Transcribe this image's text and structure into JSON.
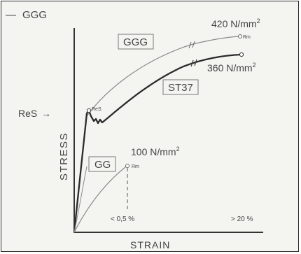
{
  "legend": {
    "dash": "—",
    "label": "GGG"
  },
  "axes": {
    "y_label": "STRESS",
    "x_label": "STRAIN"
  },
  "res_marker": {
    "label": "ReS",
    "arrow": "→",
    "point_label": "ReS"
  },
  "curves": {
    "ggg": {
      "box_label": "GGG",
      "strength": "420 N/mm",
      "sup": "2",
      "point_label": "Rm",
      "color": "#8a8a8a"
    },
    "st37": {
      "box_label": "ST37",
      "strength": "360 N/mm",
      "sup": "2",
      "color": "#2b2b2b"
    },
    "gg": {
      "box_label": "GG",
      "strength": "100 N/mm",
      "sup": "2",
      "point_label": "Rm",
      "color": "#8a8a8a"
    }
  },
  "ticks": {
    "left": "< 0,5 %",
    "right": "> 20 %"
  }
}
